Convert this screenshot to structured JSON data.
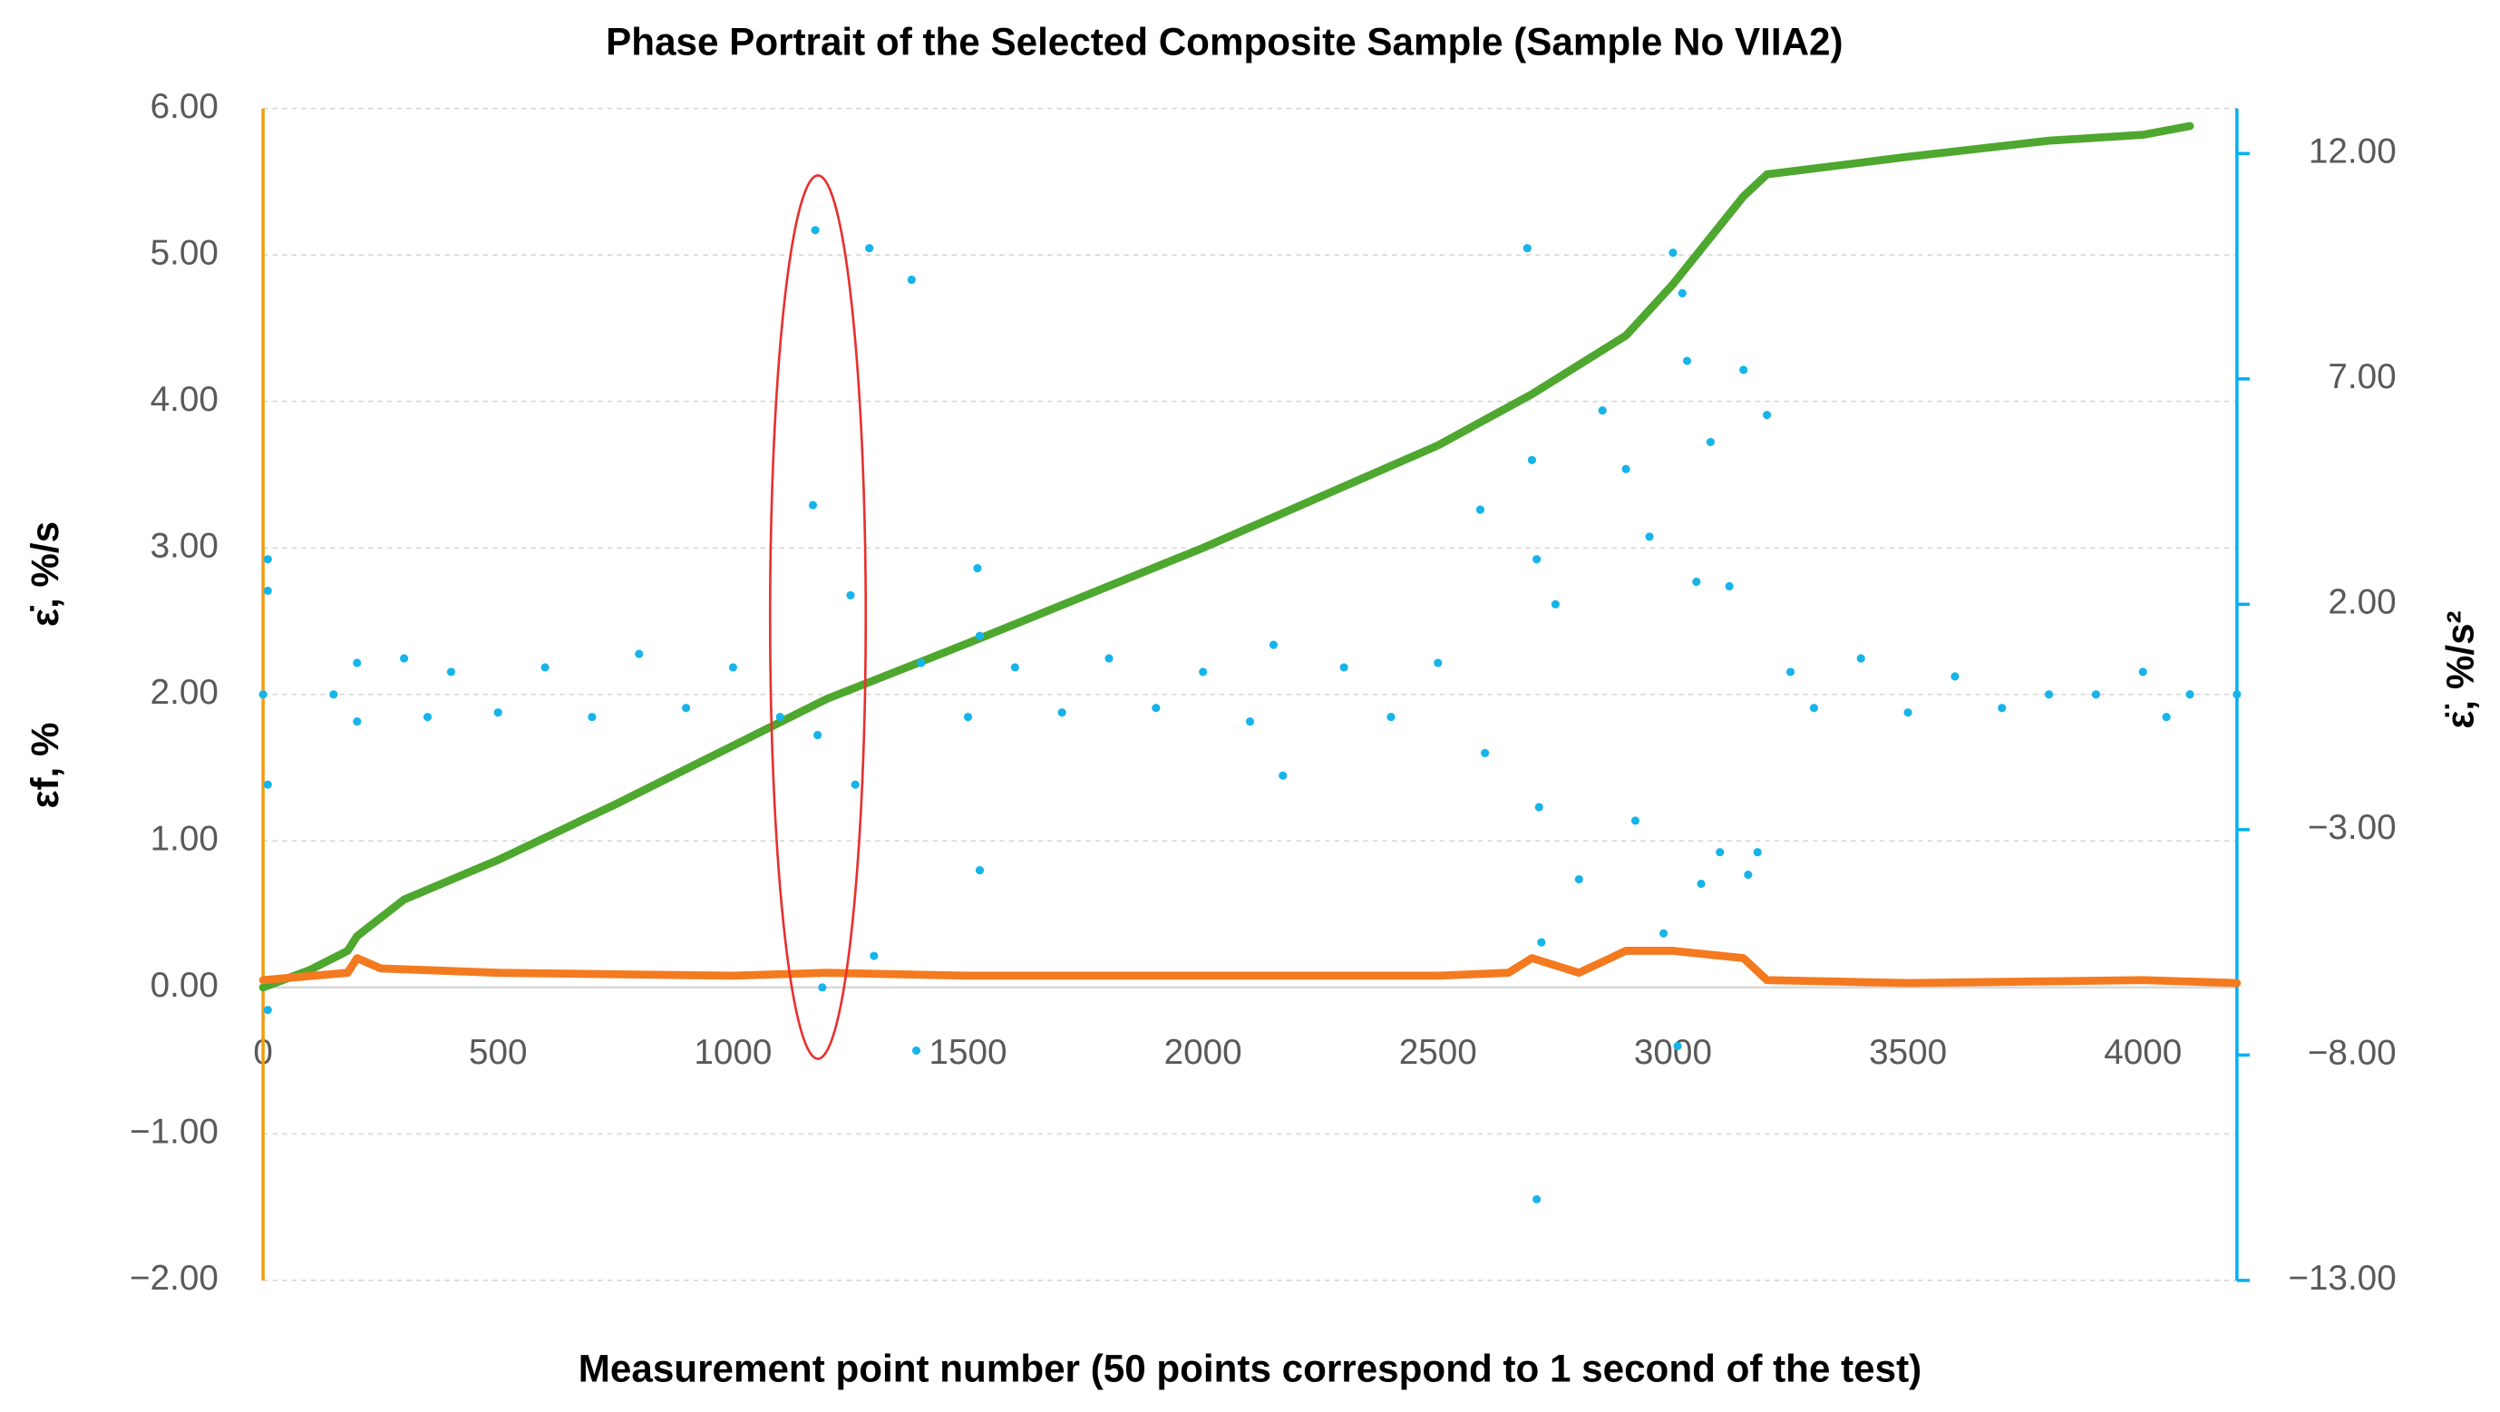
{
  "chart_data": {
    "type": "scatter",
    "title": "Phase Portrait of the Selected Composite Sample (Sample No VIIA2)",
    "x_label": "Measurement point number (50 points correspond to 1 second of the test)",
    "y_label": "εf, %",
    "y_label_2": "ε̇, %/s",
    "y2_label": "ε̈, %/s²",
    "xlim": [
      0,
      4200
    ],
    "xticks": [
      0,
      500,
      1000,
      1500,
      2000,
      2500,
      3000,
      3500,
      4000
    ],
    "ylim": [
      -2,
      6
    ],
    "yticks": [
      {
        "value": -2,
        "label": "−2.00"
      },
      {
        "value": -1,
        "label": "−1.00"
      },
      {
        "value": 0,
        "label": "0.00"
      },
      {
        "value": 1,
        "label": "1.00"
      },
      {
        "value": 2,
        "label": "2.00"
      },
      {
        "value": 3,
        "label": "3.00"
      },
      {
        "value": 4,
        "label": "4.00"
      },
      {
        "value": 5,
        "label": "5.00"
      },
      {
        "value": 6,
        "label": "6.00"
      }
    ],
    "y2lim": [
      -13,
      13
    ],
    "y2ticks": [
      {
        "value": -13,
        "label": "−13.00"
      },
      {
        "value": -8,
        "label": "−8.00"
      },
      {
        "value": -3,
        "label": "−3.00"
      },
      {
        "value": 2,
        "label": "2.00"
      },
      {
        "value": 7,
        "label": "7.00"
      },
      {
        "value": 12,
        "label": "12.00"
      }
    ],
    "grid": true,
    "y_axis_color": "#f39c12",
    "y2_axis_color": "#00b0f0",
    "series": [
      {
        "type": "line",
        "color": "#4ea72e",
        "x": [
          0,
          100,
          180,
          200,
          300,
          500,
          750,
          1000,
          1200,
          1500,
          2000,
          2500,
          2700,
          2900,
          3000,
          3150,
          3200,
          3500,
          3800,
          4000,
          4100
        ],
        "values": [
          0,
          0.12,
          0.25,
          0.35,
          0.6,
          0.87,
          1.25,
          1.65,
          1.97,
          2.35,
          3.0,
          3.7,
          4.05,
          4.45,
          4.8,
          5.4,
          5.55,
          5.67,
          5.78,
          5.82,
          5.88
        ]
      },
      {
        "type": "line",
        "color": "#f47a20",
        "x": [
          0,
          180,
          200,
          250,
          500,
          1000,
          1200,
          1500,
          2000,
          2500,
          2650,
          2700,
          2800,
          2900,
          3000,
          3150,
          3200,
          3500,
          4000,
          4200
        ],
        "values": [
          0.05,
          0.1,
          0.2,
          0.13,
          0.1,
          0.08,
          0.1,
          0.08,
          0.08,
          0.08,
          0.1,
          0.2,
          0.1,
          0.25,
          0.25,
          0.2,
          0.05,
          0.03,
          0.05,
          0.03
        ]
      },
      {
        "type": "scatter",
        "color": "#16b4ea",
        "axis": "y2",
        "x": [
          0,
          10,
          10,
          10,
          10,
          150,
          200,
          200,
          300,
          350,
          400,
          500,
          600,
          700,
          800,
          900,
          1000,
          1100,
          1170,
          1175,
          1180,
          1190,
          1250,
          1260,
          1290,
          1300,
          1380,
          1390,
          1400,
          1500,
          1520,
          1525,
          1525,
          1600,
          1700,
          1800,
          1900,
          2000,
          2100,
          2150,
          2170,
          2300,
          2400,
          2500,
          2590,
          2600,
          2690,
          2700,
          2710,
          2715,
          2720,
          2710,
          2750,
          2800,
          2850,
          2900,
          2920,
          2950,
          2980,
          3000,
          3010,
          3020,
          3030,
          3050,
          3060,
          3080,
          3100,
          3120,
          3150,
          3160,
          3180,
          3200,
          3250,
          3300,
          3400,
          3500,
          3600,
          3700,
          3800,
          3900,
          4000,
          4050,
          4100,
          4200
        ],
        "values": [
          0,
          2.3,
          3,
          -2,
          -7,
          0,
          0.7,
          -0.6,
          0.8,
          -0.5,
          0.5,
          -0.4,
          0.6,
          -0.5,
          0.9,
          -0.3,
          0.6,
          -0.5,
          4.2,
          10.3,
          -0.9,
          -6.5,
          2.2,
          -2,
          9.9,
          -5.8,
          9.2,
          -7.9,
          0.7,
          -0.5,
          2.8,
          1.3,
          -3.9,
          0.6,
          -0.4,
          0.8,
          -0.3,
          0.5,
          -0.6,
          1.1,
          -1.8,
          0.6,
          -0.5,
          0.7,
          4.1,
          -1.3,
          9.9,
          5.2,
          3,
          -2.5,
          -5.5,
          -11.2,
          2,
          -4.1,
          6.3,
          5,
          -2.8,
          3.5,
          -5.3,
          9.8,
          -7.8,
          8.9,
          7.4,
          2.5,
          -4.2,
          5.6,
          -3.5,
          2.4,
          7.2,
          -4,
          -3.5,
          6.2,
          0.5,
          -0.3,
          0.8,
          -0.4,
          0.4,
          -0.3,
          0,
          0,
          0.5,
          -0.5,
          0,
          0
        ]
      }
    ]
  }
}
